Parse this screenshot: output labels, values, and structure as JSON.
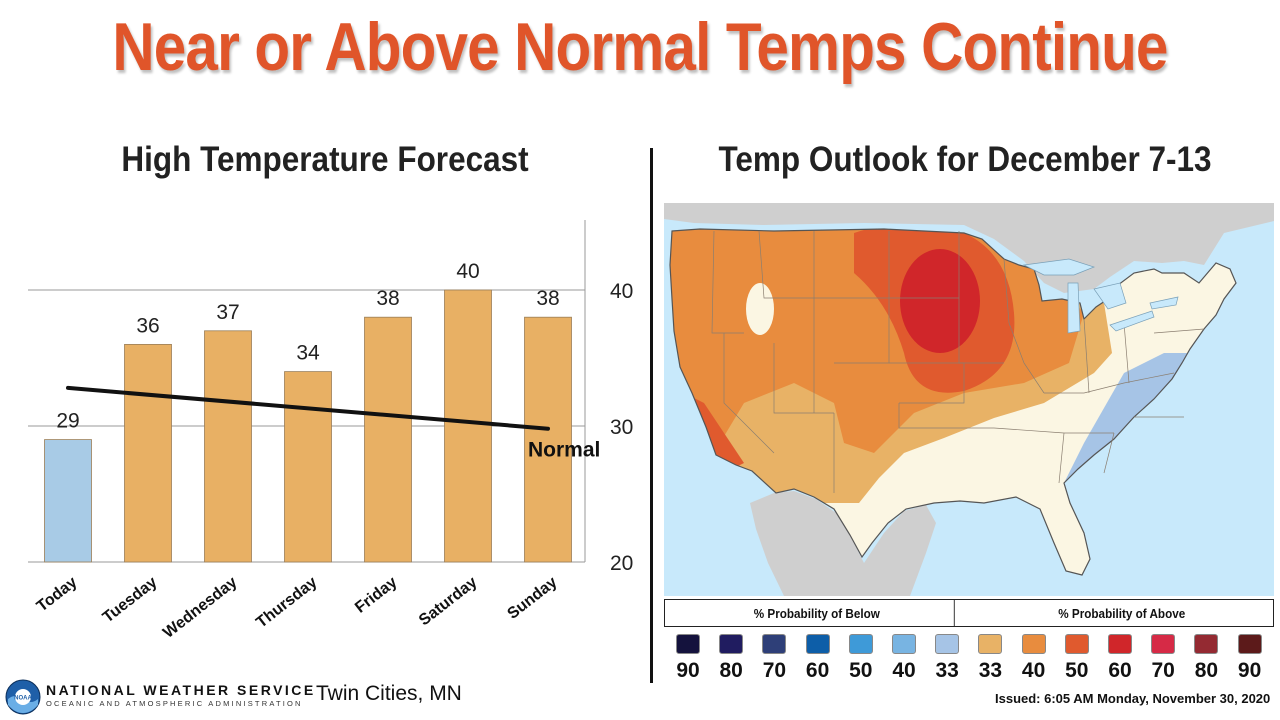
{
  "title": "Near or Above Normal Temps Continue",
  "colors": {
    "title": "#e0552a",
    "bar_above": "#e8b064",
    "bar_below": "#a8cbe6",
    "normal_line": "#111111"
  },
  "left_panel": {
    "title": "High Temperature Forecast"
  },
  "chart_data": {
    "type": "bar",
    "categories": [
      "Today",
      "Tuesday",
      "Wednesday",
      "Thursday",
      "Friday",
      "Saturday",
      "Sunday"
    ],
    "series": [
      {
        "values": [
          29,
          36,
          37,
          34,
          38,
          40,
          38
        ],
        "colors": [
          "#a8cbe6",
          "#e8b064",
          "#e8b064",
          "#e8b064",
          "#e8b064",
          "#e8b064",
          "#e8b064"
        ]
      }
    ],
    "normal_line": {
      "label": "Normal",
      "start": 32.8,
      "end": 29.8
    },
    "ylim": [
      20,
      45
    ],
    "yticks": [
      20,
      30,
      40
    ],
    "y_axis_side": "right",
    "grid": true,
    "data_labels": true
  },
  "right_panel": {
    "title": "Temp Outlook for December 7-13",
    "legend": {
      "below_label": "% Probability of Below",
      "above_label": "% Probability of Above",
      "categories": [
        {
          "label": "90",
          "color": "#14123d"
        },
        {
          "label": "80",
          "color": "#201c60"
        },
        {
          "label": "70",
          "color": "#2e3f78"
        },
        {
          "label": "60",
          "color": "#0d5ea8"
        },
        {
          "label": "50",
          "color": "#3e9ad8"
        },
        {
          "label": "40",
          "color": "#78b4e2"
        },
        {
          "label": "33",
          "color": "#a6c4e6"
        },
        {
          "label": "33",
          "color": "#e8b266"
        },
        {
          "label": "40",
          "color": "#e88c3e"
        },
        {
          "label": "50",
          "color": "#e05a2e"
        },
        {
          "label": "60",
          "color": "#d0262a"
        },
        {
          "label": "70",
          "color": "#d62a46"
        },
        {
          "label": "80",
          "color": "#942a32"
        },
        {
          "label": "90",
          "color": "#5c1a1a"
        }
      ]
    },
    "issued": "Issued: 6:05 AM Monday, November 30, 2020"
  },
  "footer": {
    "agency_name": "NATIONAL WEATHER SERVICE",
    "agency_sub": "OCEANIC AND ATMOSPHERIC ADMINISTRATION",
    "logo_text": "NOAA",
    "location": "Twin Cities, MN"
  }
}
